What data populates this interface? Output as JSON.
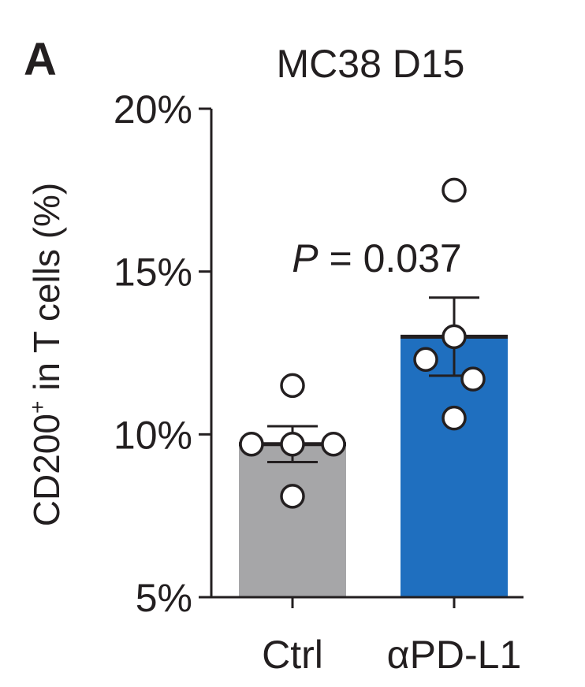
{
  "panel_label": "A",
  "chart_data": {
    "type": "bar",
    "title": "MC38 D15",
    "ylabel_main": "CD200",
    "ylabel_sup": "+",
    "ylabel_rest": " in T cells (%)",
    "categories": [
      "Ctrl",
      "αPD-L1"
    ],
    "values": [
      9.7,
      13.0
    ],
    "errors": [
      0.55,
      1.2
    ],
    "colors": [
      "#a6a6a8",
      "#1f6fbf"
    ],
    "points": [
      [
        11.5,
        9.7,
        9.7,
        9.7,
        8.1
      ],
      [
        17.5,
        13.0,
        12.3,
        11.7,
        10.5
      ]
    ],
    "ylim": [
      5,
      20
    ],
    "yticks": [
      5,
      10,
      15,
      20
    ],
    "ytick_labels": [
      "5%",
      "10%",
      "15%",
      "20%"
    ],
    "annotation_p_symbol": "P",
    "annotation_p_rest": " = 0.037"
  }
}
